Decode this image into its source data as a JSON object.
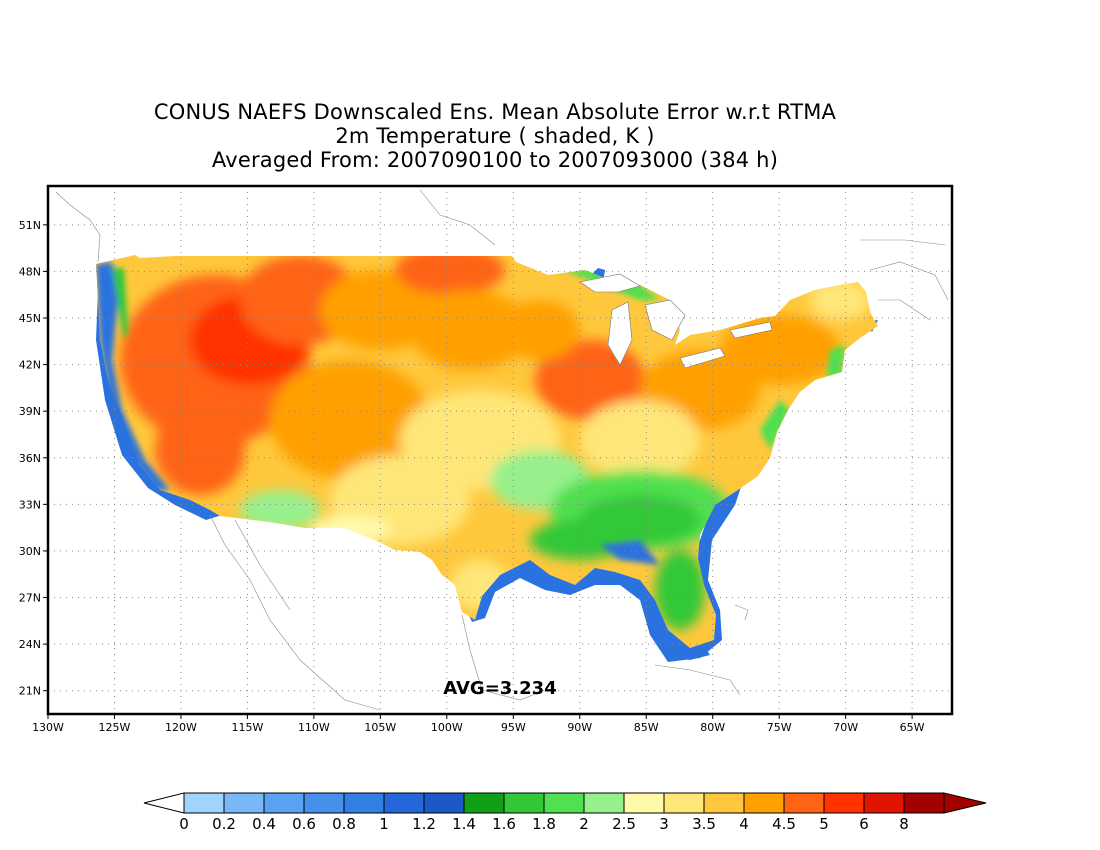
{
  "title": {
    "line1": "CONUS NAEFS Downscaled Ens. Mean Absolute Error w.r.t RTMA",
    "line2": "2m Temperature ( shaded, K )",
    "line3": "Averaged From: 2007090100 to 2007093000 (384 h)"
  },
  "map": {
    "lon_range": [
      -130,
      -62
    ],
    "lat_range": [
      19.5,
      53.5
    ],
    "lon_ticks": [
      "130W",
      "125W",
      "120W",
      "115W",
      "110W",
      "105W",
      "100W",
      "95W",
      "90W",
      "85W",
      "80W",
      "75W",
      "70W",
      "65W"
    ],
    "lat_ticks": [
      "51N",
      "48N",
      "45N",
      "42N",
      "39N",
      "36N",
      "33N",
      "30N",
      "27N",
      "24N",
      "21N"
    ],
    "grid": "dotted",
    "avg_label": "AVG=3.234"
  },
  "colorbar": {
    "labels": [
      "0",
      "0.2",
      "0.4",
      "0.6",
      "0.8",
      "1",
      "1.2",
      "1.4",
      "1.6",
      "1.8",
      "2",
      "2.5",
      "3",
      "3.5",
      "4",
      "4.5",
      "5",
      "6",
      "8"
    ],
    "colors": [
      "#9fd4ff",
      "#78b8f8",
      "#5aa2f2",
      "#4690ec",
      "#3280e6",
      "#2468dc",
      "#1c58c8",
      "#10a018",
      "#30c838",
      "#50e050",
      "#96f08c",
      "#fffaaa",
      "#ffe678",
      "#ffc83c",
      "#ffa000",
      "#ff6414",
      "#ff3200",
      "#e11400",
      "#a50000"
    ],
    "low_arrow_color": "#ffffff",
    "high_arrow_color": "#a50000"
  }
}
